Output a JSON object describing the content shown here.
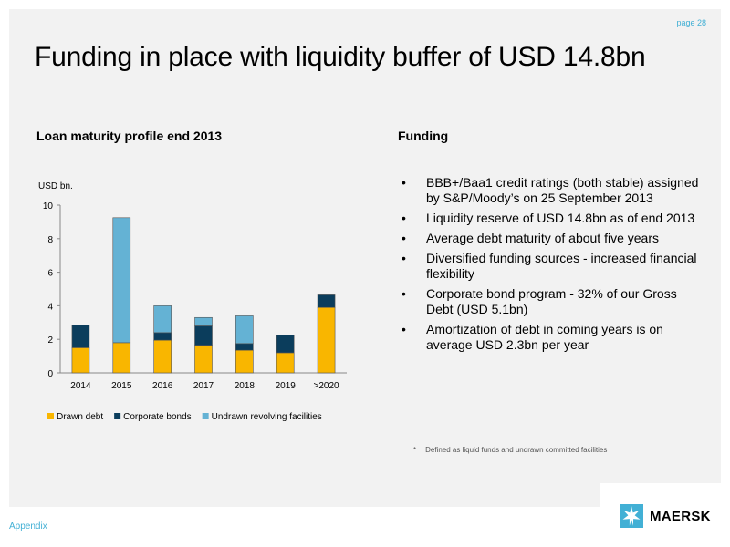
{
  "page": "page 28",
  "title": "Funding in place with liquidity buffer of USD 14.8bn",
  "left_heading": "Loan maturity profile end 2013",
  "right_heading": "Funding",
  "chart_data": {
    "type": "bar",
    "stacked": true,
    "title": "",
    "ylabel": "USD bn.",
    "xlabel": "",
    "categories": [
      "2014",
      "2015",
      "2016",
      "2017",
      "2018",
      "2019",
      ">2020"
    ],
    "ylim": [
      0,
      10
    ],
    "yticks": [
      0,
      2,
      4,
      6,
      8,
      10
    ],
    "grid": false,
    "legend_position": "bottom",
    "series": [
      {
        "name": "Drawn debt",
        "color": "#f9b600",
        "values": [
          1.5,
          1.8,
          1.95,
          1.65,
          1.35,
          1.2,
          3.9
        ]
      },
      {
        "name": "Corporate bonds",
        "color": "#0b3d5c",
        "values": [
          1.35,
          0.0,
          0.45,
          1.15,
          0.4,
          1.05,
          0.75
        ]
      },
      {
        "name": "Undrawn revolving facilities",
        "color": "#64b2d4",
        "values": [
          0.0,
          7.45,
          1.6,
          0.5,
          1.65,
          0.0,
          0.0
        ]
      }
    ]
  },
  "bullets": [
    "BBB+/Baa1 credit ratings (both stable) assigned by S&P/Moody’s on 25 September 2013",
    "Liquidity reserve of USD 14.8bn as of end 2013",
    "Average debt maturity of about five years",
    "Diversified funding sources - increased financial flexibility",
    "Corporate bond program - 32% of our Gross Debt (USD 5.1bn)",
    "Amortization of debt in coming years is on average USD 2.3bn per year"
  ],
  "bullet_symbol": "•",
  "footnote": {
    "marker": "*",
    "text": "Defined as liquid funds and  undrawn committed facilities"
  },
  "footer": "Appendix",
  "logo": {
    "icon": "seven-pointed-star-icon",
    "text": "MAERSK"
  }
}
